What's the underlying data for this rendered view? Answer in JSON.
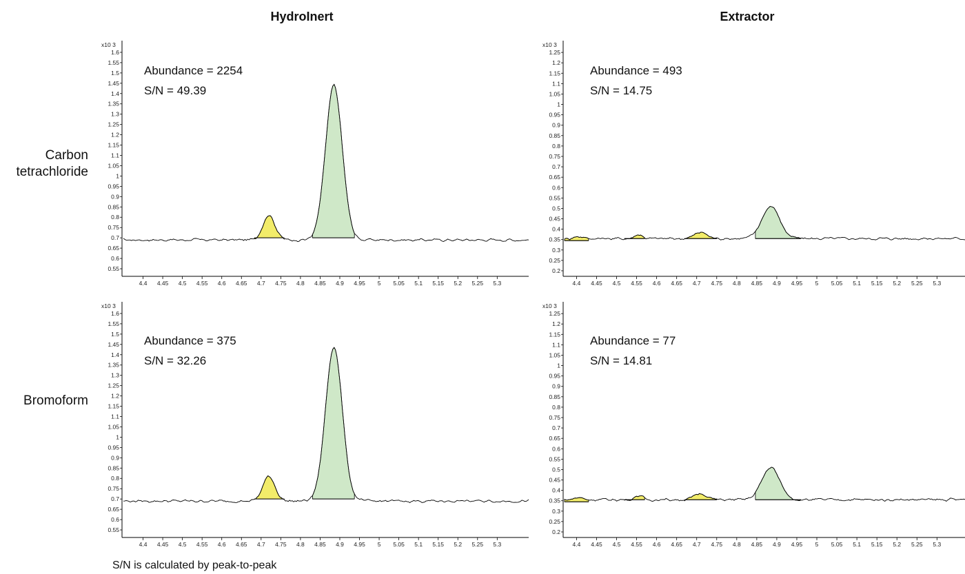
{
  "column_titles": [
    "HydroInert",
    "Extractor"
  ],
  "row_labels": [
    "Carbon tetrachloride",
    "Bromoform"
  ],
  "footnote": "S/N is calculated by peak-to-peak",
  "colors": {
    "main_peak": "#cfe8c8",
    "minor_peak": "#f2ec6a",
    "trace": "#000000",
    "baseline": "#000000"
  },
  "chart_data": [
    {
      "type": "area",
      "column": "HydroInert",
      "row": "Carbon tetrachloride",
      "y_multiplier_label": "x10 3",
      "abundance_label": "Abundance = 2254",
      "sn_label": "S/N = 49.39",
      "xlim": [
        4.35,
        5.38
      ],
      "ylim": [
        0.52,
        1.65
      ],
      "x_ticks": [
        4.4,
        4.45,
        4.5,
        4.55,
        4.6,
        4.65,
        4.7,
        4.75,
        4.8,
        4.85,
        4.9,
        4.95,
        5,
        5.05,
        5.1,
        5.15,
        5.2,
        5.25,
        5.3
      ],
      "y_ticks": [
        0.55,
        0.6,
        0.65,
        0.7,
        0.75,
        0.8,
        0.85,
        0.9,
        0.95,
        1,
        1.05,
        1.1,
        1.15,
        1.2,
        1.25,
        1.3,
        1.35,
        1.4,
        1.45,
        1.5,
        1.55,
        1.6
      ],
      "baseline": 0.69,
      "peaks": [
        {
          "role": "minor",
          "center": 4.72,
          "height": 0.81,
          "start": 4.68,
          "end": 4.76,
          "base": 0.7
        },
        {
          "role": "main",
          "center": 4.885,
          "height": 1.44,
          "start": 4.83,
          "end": 4.94,
          "base": 0.7
        }
      ]
    },
    {
      "type": "area",
      "column": "Extractor",
      "row": "Carbon tetrachloride",
      "y_multiplier_label": "x10 3",
      "abundance_label": "Abundance = 493",
      "sn_label": "S/N = 14.75",
      "xlim": [
        4.37,
        5.37
      ],
      "ylim": [
        0.18,
        1.3
      ],
      "x_ticks": [
        4.4,
        4.45,
        4.5,
        4.55,
        4.6,
        4.65,
        4.7,
        4.75,
        4.8,
        4.85,
        4.9,
        4.95,
        5,
        5.05,
        5.1,
        5.15,
        5.2,
        5.25,
        5.3
      ],
      "y_ticks": [
        0.2,
        0.25,
        0.3,
        0.35,
        0.4,
        0.45,
        0.5,
        0.55,
        0.6,
        0.65,
        0.7,
        0.75,
        0.8,
        0.85,
        0.9,
        0.95,
        1,
        1.05,
        1.1,
        1.15,
        1.2,
        1.25
      ],
      "baseline": 0.355,
      "peaks": [
        {
          "role": "minor",
          "center": 4.405,
          "height": 0.365,
          "start": 4.37,
          "end": 4.43,
          "base": 0.345
        },
        {
          "role": "minor",
          "center": 4.555,
          "height": 0.375,
          "start": 4.52,
          "end": 4.57,
          "base": 0.355
        },
        {
          "role": "minor",
          "center": 4.71,
          "height": 0.385,
          "start": 4.67,
          "end": 4.75,
          "base": 0.355
        },
        {
          "role": "main",
          "center": 4.885,
          "height": 0.51,
          "start": 4.845,
          "end": 4.96,
          "base": 0.355
        }
      ]
    },
    {
      "type": "area",
      "column": "HydroInert",
      "row": "Bromoform",
      "y_multiplier_label": "x10 3",
      "abundance_label": "Abundance = 375",
      "sn_label": "S/N = 32.26",
      "xlim": [
        4.35,
        5.38
      ],
      "ylim": [
        0.52,
        1.65
      ],
      "x_ticks": [
        4.4,
        4.45,
        4.5,
        4.55,
        4.6,
        4.65,
        4.7,
        4.75,
        4.8,
        4.85,
        4.9,
        4.95,
        5,
        5.05,
        5.1,
        5.15,
        5.2,
        5.25,
        5.3
      ],
      "y_ticks": [
        0.55,
        0.6,
        0.65,
        0.7,
        0.75,
        0.8,
        0.85,
        0.9,
        0.95,
        1,
        1.05,
        1.1,
        1.15,
        1.2,
        1.25,
        1.3,
        1.35,
        1.4,
        1.45,
        1.5,
        1.55,
        1.6
      ],
      "baseline": 0.69,
      "peaks": [
        {
          "role": "minor",
          "center": 4.72,
          "height": 0.81,
          "start": 4.68,
          "end": 4.76,
          "base": 0.7
        },
        {
          "role": "main",
          "center": 4.885,
          "height": 1.44,
          "start": 4.83,
          "end": 4.94,
          "base": 0.7
        }
      ]
    },
    {
      "type": "area",
      "column": "Extractor",
      "row": "Bromoform",
      "y_multiplier_label": "x10 3",
      "abundance_label": "Abundance = 77",
      "sn_label": "S/N = 14.81",
      "xlim": [
        4.37,
        5.37
      ],
      "ylim": [
        0.18,
        1.3
      ],
      "x_ticks": [
        4.4,
        4.45,
        4.5,
        4.55,
        4.6,
        4.65,
        4.7,
        4.75,
        4.8,
        4.85,
        4.9,
        4.95,
        5,
        5.05,
        5.1,
        5.15,
        5.2,
        5.25,
        5.3
      ],
      "y_ticks": [
        0.2,
        0.25,
        0.3,
        0.35,
        0.4,
        0.45,
        0.5,
        0.55,
        0.6,
        0.65,
        0.7,
        0.75,
        0.8,
        0.85,
        0.9,
        0.95,
        1,
        1.05,
        1.1,
        1.15,
        1.2,
        1.25
      ],
      "baseline": 0.355,
      "peaks": [
        {
          "role": "minor",
          "center": 4.405,
          "height": 0.365,
          "start": 4.37,
          "end": 4.43,
          "base": 0.345
        },
        {
          "role": "minor",
          "center": 4.555,
          "height": 0.375,
          "start": 4.52,
          "end": 4.57,
          "base": 0.355
        },
        {
          "role": "minor",
          "center": 4.71,
          "height": 0.385,
          "start": 4.67,
          "end": 4.75,
          "base": 0.355
        },
        {
          "role": "main",
          "center": 4.885,
          "height": 0.51,
          "start": 4.845,
          "end": 4.96,
          "base": 0.355
        }
      ]
    }
  ]
}
